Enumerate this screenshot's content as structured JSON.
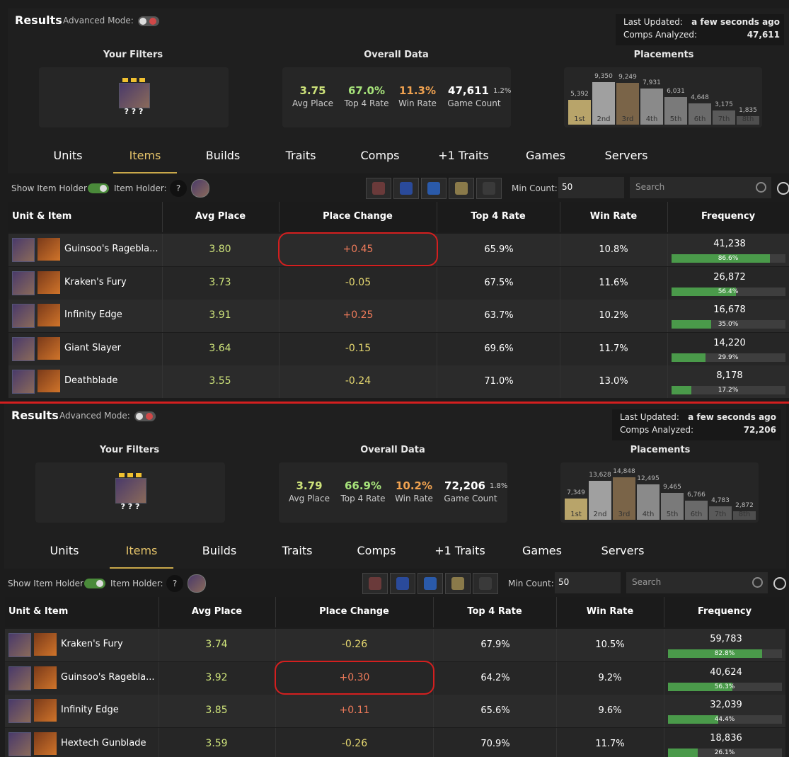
{
  "panels": [
    {
      "header": {
        "title": "Results",
        "advanced_mode": "Advanced Mode:",
        "last_updated_label": "Last Updated:",
        "last_updated_value": "a few seconds ago",
        "comps_label": "Comps Analyzed:",
        "comps_value": "47,611"
      },
      "filters_title": "Your Filters",
      "filter_items": "? ? ?",
      "overall_title": "Overall Data",
      "stats": [
        {
          "value": "3.75",
          "label": "Avg Place"
        },
        {
          "value": "67.0%",
          "label": "Top 4 Rate"
        },
        {
          "value": "11.3%",
          "label": "Win Rate"
        },
        {
          "value": "47,611",
          "label": "Game Count",
          "extra": "1.2%"
        }
      ],
      "placements_title": "Placements",
      "placements": [
        {
          "label": "1st",
          "count": "5,392"
        },
        {
          "label": "2nd",
          "count": "9,350"
        },
        {
          "label": "3rd",
          "count": "9,249"
        },
        {
          "label": "4th",
          "count": "7,931"
        },
        {
          "label": "5th",
          "count": "6,031"
        },
        {
          "label": "6th",
          "count": "4,648"
        },
        {
          "label": "7th",
          "count": "3,175"
        },
        {
          "label": "8th",
          "count": "1,835"
        }
      ],
      "tabs": [
        "Units",
        "Items",
        "Builds",
        "Traits",
        "Comps",
        "+1 Traits",
        "Games",
        "Servers"
      ],
      "active_tab": 1,
      "toolbar": {
        "show_item_holder": "Show Item Holder",
        "item_holder": "Item Holder:",
        "help": "?",
        "min_count_label": "Min Count:",
        "min_count_value": "50",
        "search": "Search"
      },
      "columns": [
        "Unit & Item",
        "Avg Place",
        "Place Change",
        "Top 4 Rate",
        "Win Rate",
        "Frequency"
      ],
      "rows": [
        {
          "item": "Guinsoo's Ragebla...",
          "avg_place": "3.80",
          "place_change": "+0.45",
          "top4": "65.9%",
          "win_rate": "10.8%",
          "frequency": "41,238",
          "frequency_pct": "86.6%"
        },
        {
          "item": "Kraken's Fury",
          "avg_place": "3.73",
          "place_change": "-0.05",
          "top4": "67.5%",
          "win_rate": "11.6%",
          "frequency": "26,872",
          "frequency_pct": "56.4%"
        },
        {
          "item": "Infinity Edge",
          "avg_place": "3.91",
          "place_change": "+0.25",
          "top4": "63.7%",
          "win_rate": "10.2%",
          "frequency": "16,678",
          "frequency_pct": "35.0%"
        },
        {
          "item": "Giant Slayer",
          "avg_place": "3.64",
          "place_change": "-0.15",
          "top4": "69.6%",
          "win_rate": "11.7%",
          "frequency": "14,220",
          "frequency_pct": "29.9%"
        },
        {
          "item": "Deathblade",
          "avg_place": "3.55",
          "place_change": "-0.24",
          "top4": "71.0%",
          "win_rate": "13.0%",
          "frequency": "8,178",
          "frequency_pct": "17.2%"
        }
      ],
      "highlight_row": 0
    },
    {
      "header": {
        "title": "Results",
        "advanced_mode": "Advanced Mode:",
        "last_updated_label": "Last Updated:",
        "last_updated_value": "a few seconds ago",
        "comps_label": "Comps Analyzed:",
        "comps_value": "72,206"
      },
      "filters_title": "Your Filters",
      "filter_items": "? ? ?",
      "overall_title": "Overall Data",
      "stats": [
        {
          "value": "3.79",
          "label": "Avg Place"
        },
        {
          "value": "66.9%",
          "label": "Top 4 Rate"
        },
        {
          "value": "10.2%",
          "label": "Win Rate"
        },
        {
          "value": "72,206",
          "label": "Game Count",
          "extra": "1.8%"
        }
      ],
      "placements_title": "Placements",
      "placements": [
        {
          "label": "1st",
          "count": "7,349"
        },
        {
          "label": "2nd",
          "count": "13,628"
        },
        {
          "label": "3rd",
          "count": "14,848"
        },
        {
          "label": "4th",
          "count": "12,495"
        },
        {
          "label": "5th",
          "count": "9,465"
        },
        {
          "label": "6th",
          "count": "6,766"
        },
        {
          "label": "7th",
          "count": "4,783"
        },
        {
          "label": "8th",
          "count": "2,872"
        }
      ],
      "tabs": [
        "Units",
        "Items",
        "Builds",
        "Traits",
        "Comps",
        "+1 Traits",
        "Games",
        "Servers"
      ],
      "active_tab": 1,
      "toolbar": {
        "show_item_holder": "Show Item Holder",
        "item_holder": "Item Holder:",
        "help": "?",
        "min_count_label": "Min Count:",
        "min_count_value": "50",
        "search": "Search"
      },
      "columns": [
        "Unit & Item",
        "Avg Place",
        "Place Change",
        "Top 4 Rate",
        "Win Rate",
        "Frequency"
      ],
      "rows": [
        {
          "item": "Kraken's Fury",
          "avg_place": "3.74",
          "place_change": "-0.26",
          "top4": "67.9%",
          "win_rate": "10.5%",
          "frequency": "59,783",
          "frequency_pct": "82.8%"
        },
        {
          "item": "Guinsoo's Ragebla...",
          "avg_place": "3.92",
          "place_change": "+0.30",
          "top4": "64.2%",
          "win_rate": "9.2%",
          "frequency": "40,624",
          "frequency_pct": "56.3%"
        },
        {
          "item": "Infinity Edge",
          "avg_place": "3.85",
          "place_change": "+0.11",
          "top4": "65.6%",
          "win_rate": "9.6%",
          "frequency": "32,039",
          "frequency_pct": "44.4%"
        },
        {
          "item": "Hextech Gunblade",
          "avg_place": "3.59",
          "place_change": "-0.26",
          "top4": "70.9%",
          "win_rate": "11.7%",
          "frequency": "18,836",
          "frequency_pct": "26.1%"
        }
      ],
      "highlight_row": 1
    }
  ]
}
